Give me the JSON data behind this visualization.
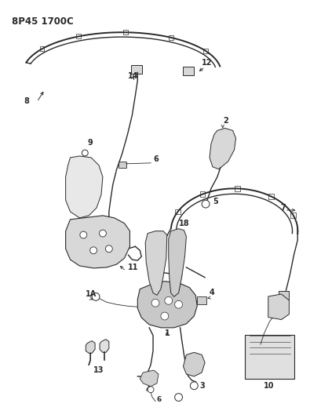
{
  "title": "8P45 1700C",
  "bg_color": "#ffffff",
  "line_color": "#2a2a2a",
  "title_fontsize": 8.5,
  "label_fontsize": 7,
  "fig_width": 3.95,
  "fig_height": 5.33,
  "dpi": 100
}
